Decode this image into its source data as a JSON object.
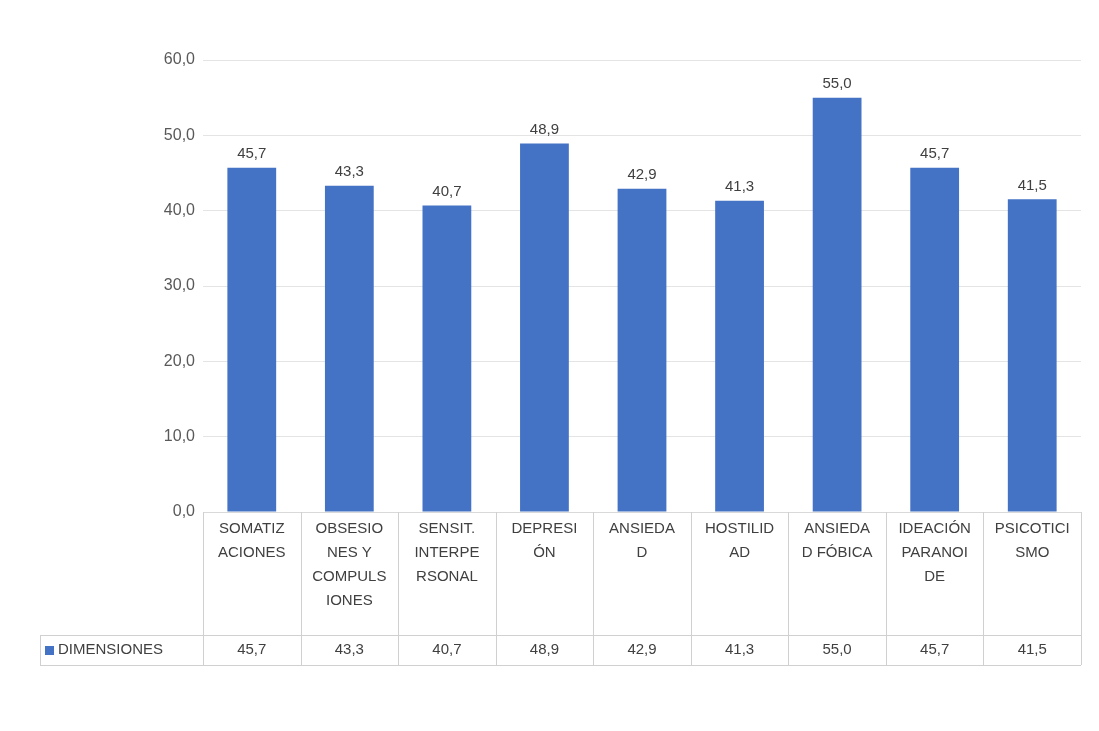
{
  "chart_data": {
    "type": "bar",
    "categories": [
      "SOMATIZACIONES",
      "OBSESIONES Y COMPULSIONES",
      "SENSIT. INTERPERSONAL",
      "DEPRESIÓN",
      "ANSIEDAD",
      "HOSTILIDAD",
      "ANSIEDAD FÓBICA",
      "IDEACIÓN PARANOIDE",
      "PSICOTICISMO"
    ],
    "series": [
      {
        "name": "DIMENSIONES",
        "color": "#4472c4",
        "values": [
          45.7,
          43.3,
          40.7,
          48.9,
          42.9,
          41.3,
          55.0,
          45.7,
          41.5
        ],
        "value_labels": [
          "45,7",
          "43,3",
          "40,7",
          "48,9",
          "42,9",
          "41,3",
          "55,0",
          "45,7",
          "41,5"
        ]
      }
    ],
    "ylim": [
      0,
      60
    ],
    "yticks": [
      {
        "value": 0,
        "label": "0,0"
      },
      {
        "value": 10,
        "label": "10,0"
      },
      {
        "value": 20,
        "label": "20,0"
      },
      {
        "value": 30,
        "label": "30,0"
      },
      {
        "value": 40,
        "label": "40,0"
      },
      {
        "value": 50,
        "label": "50,0"
      },
      {
        "value": 60,
        "label": "60,0"
      }
    ],
    "grid": "y",
    "legend": "bottom"
  }
}
